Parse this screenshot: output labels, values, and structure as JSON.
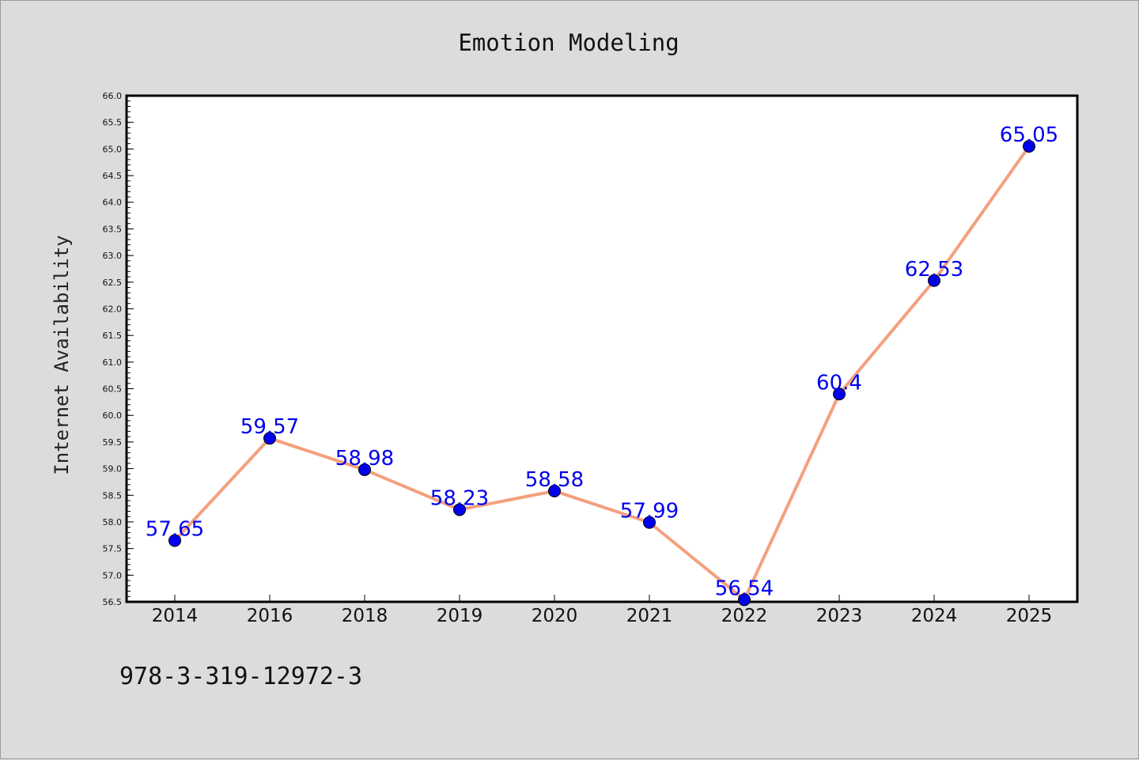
{
  "chart_data": {
    "type": "line",
    "title": "Emotion Modeling",
    "xlabel": "",
    "ylabel": "Internet Availability",
    "categories": [
      "2014",
      "2016",
      "2018",
      "2019",
      "2020",
      "2021",
      "2022",
      "2023",
      "2024",
      "2025"
    ],
    "series": [
      {
        "values": [
          57.65,
          59.57,
          58.98,
          58.23,
          58.58,
          57.99,
          56.54,
          60.4,
          62.53,
          65.05
        ]
      }
    ],
    "data_labels": [
      "57.65",
      "59.57",
      "58.98",
      "58.23",
      "58.58",
      "57.99",
      "56.54",
      "60.4",
      "62.53",
      "65.05"
    ],
    "ylim": [
      56.5,
      66.0
    ],
    "yticks": [
      "56.5",
      "57.0",
      "57.5",
      "58.0",
      "58.5",
      "59.0",
      "59.5",
      "60.0",
      "60.5",
      "61.0",
      "61.5",
      "62.0",
      "62.5",
      "63.0",
      "63.5",
      "64.0",
      "64.5",
      "65.0",
      "65.5",
      "66.0"
    ],
    "grid": false,
    "line_color": "#f4a07e",
    "marker_color": "#0000ee",
    "label_color": "#0000ee"
  },
  "footer": {
    "text": "978-3-319-12972-3"
  }
}
